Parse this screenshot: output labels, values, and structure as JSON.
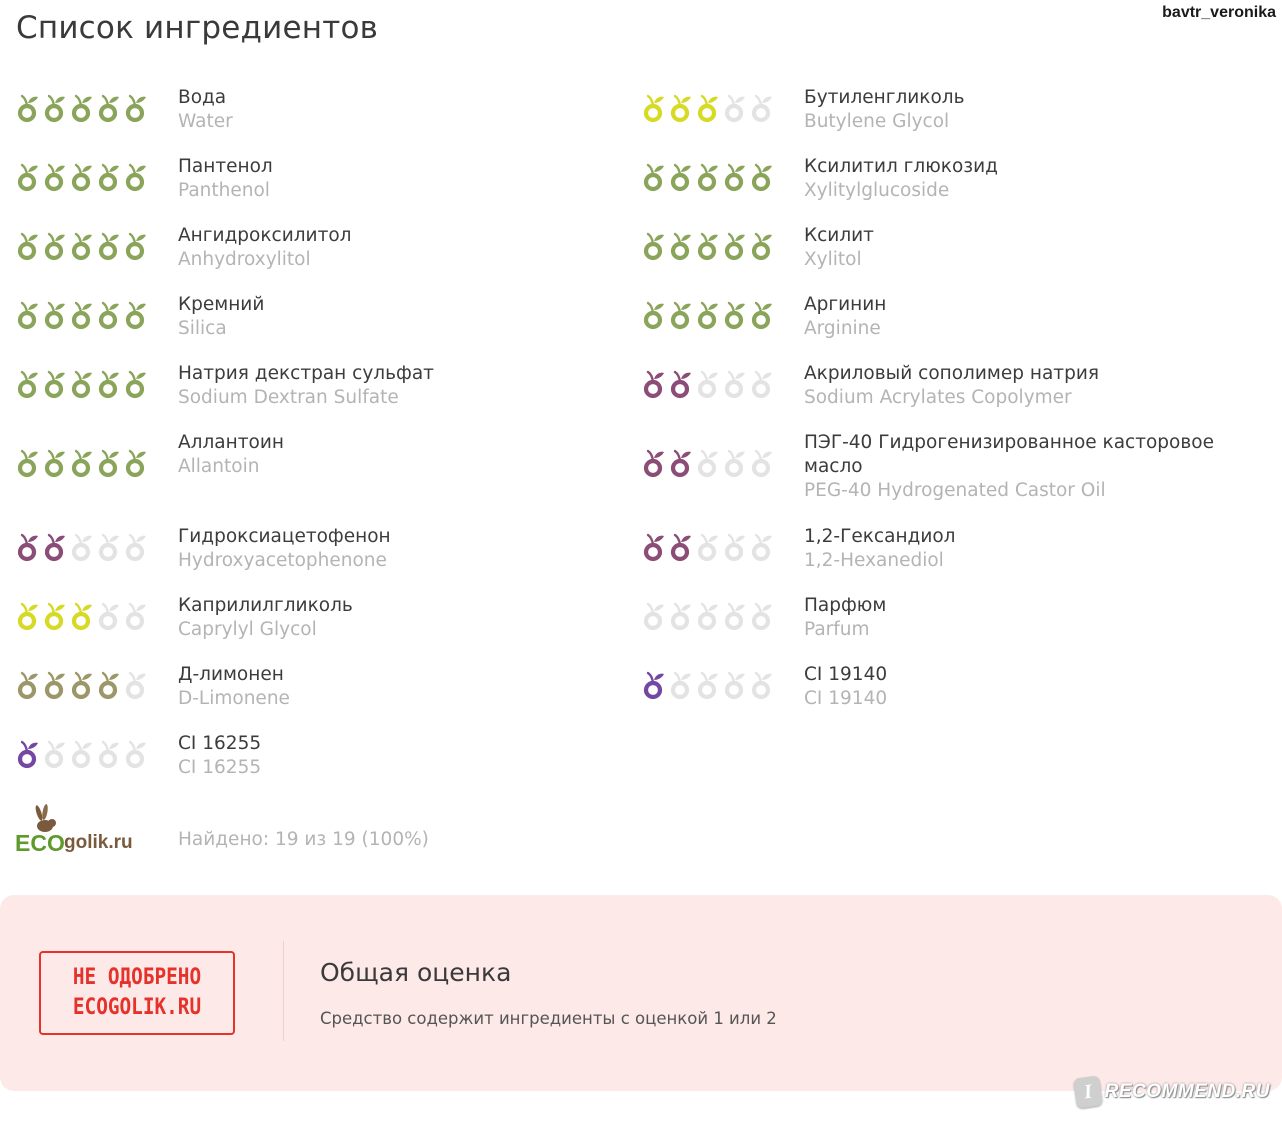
{
  "header": {
    "title": "Список ингредиентов",
    "username": "bavtr_veronika"
  },
  "colors": {
    "green": "#8aa45a",
    "yellow": "#d6da24",
    "olive": "#9b9768",
    "purple": "#8b4d77",
    "violet": "#7447a2",
    "empty": "#e3e3e3"
  },
  "ingredients_left": [
    {
      "ru": "Вода",
      "en": "Water",
      "rating": 5,
      "color": "#8aa45a"
    },
    {
      "ru": "Пантенол",
      "en": "Panthenol",
      "rating": 5,
      "color": "#8aa45a"
    },
    {
      "ru": "Ангидроксилитол",
      "en": "Anhydroxylitol",
      "rating": 5,
      "color": "#8aa45a"
    },
    {
      "ru": "Кремний",
      "en": "Silica",
      "rating": 5,
      "color": "#8aa45a"
    },
    {
      "ru": "Натрия декстран сульфат",
      "en": "Sodium Dextran Sulfate",
      "rating": 5,
      "color": "#8aa45a"
    },
    {
      "ru": "Аллантоин",
      "en": "Allantoin",
      "rating": 5,
      "color": "#8aa45a"
    },
    {
      "ru": "Гидроксиацетофенон",
      "en": "Hydroxyacetophenone",
      "rating": 2,
      "color": "#8b4d77"
    },
    {
      "ru": "Каприлилгликоль",
      "en": "Caprylyl Glycol",
      "rating": 3,
      "color": "#d6da24"
    },
    {
      "ru": "Д-лимонен",
      "en": "D-Limonene",
      "rating": 4,
      "color": "#9b9768"
    },
    {
      "ru": "CI 16255",
      "en": "CI 16255",
      "rating": 1,
      "color": "#7447a2"
    }
  ],
  "ingredients_right": [
    {
      "ru": "Бутиленгликоль",
      "en": "Butylene Glycol",
      "rating": 3,
      "color": "#d6da24"
    },
    {
      "ru": "Ксилитил глюкозид",
      "en": "Xylitylglucoside",
      "rating": 5,
      "color": "#8aa45a"
    },
    {
      "ru": "Ксилит",
      "en": "Xylitol",
      "rating": 5,
      "color": "#8aa45a"
    },
    {
      "ru": "Аргинин",
      "en": "Arginine",
      "rating": 5,
      "color": "#8aa45a"
    },
    {
      "ru": "Акриловый сополимер натрия",
      "en": "Sodium Acrylates Copolymer",
      "rating": 2,
      "color": "#8b4d77"
    },
    {
      "ru": "ПЭГ-40 Гидрогенизированное касторовое масло",
      "en": "PEG-40 Hydrogenated Castor Oil",
      "rating": 2,
      "color": "#8b4d77"
    },
    {
      "ru": "1,2-Гександиол",
      "en": "1,2-Hexanediol",
      "rating": 2,
      "color": "#8b4d77"
    },
    {
      "ru": "Парфюм",
      "en": "Parfum",
      "rating": 0,
      "color": "#e3e3e3"
    },
    {
      "ru": "CI 19140",
      "en": "CI 19140",
      "rating": 1,
      "color": "#7447a2"
    }
  ],
  "footer": {
    "logo_text_eco": "ECO",
    "logo_text_rest": "golik.ru",
    "found": "Найдено: 19 из 19 (100%)"
  },
  "verdict": {
    "stamp_line1": "НЕ ОДОБРЕНО",
    "stamp_line2": "ECOGOLIK.RU",
    "title": "Общая оценка",
    "description": "Средство содержит ингредиенты с оценкой 1 или 2"
  },
  "watermark": {
    "badge": "I",
    "text": "RECOMMEND.RU"
  }
}
